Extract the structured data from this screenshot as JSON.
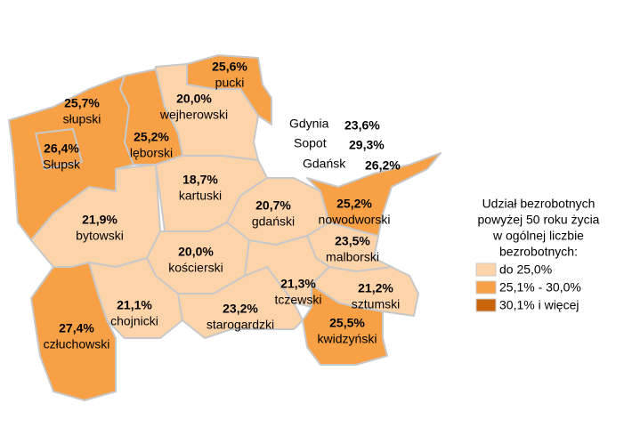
{
  "regions": [
    {
      "name": "pucki",
      "value": 25.6,
      "value_label": "25,6%"
    },
    {
      "name": "wejherowski",
      "value": 20.0,
      "value_label": "20,0%"
    },
    {
      "name": "lęborski",
      "value": 25.2,
      "value_label": "25,2%"
    },
    {
      "name": "słupski",
      "value": 25.7,
      "value_label": "25,7%"
    },
    {
      "name": "Słupsk",
      "value": 26.4,
      "value_label": "26,4%"
    },
    {
      "name": "bytowski",
      "value": 21.9,
      "value_label": "21,9%"
    },
    {
      "name": "kartuski",
      "value": 18.7,
      "value_label": "18,7%"
    },
    {
      "name": "gdański",
      "value": 20.7,
      "value_label": "20,7%"
    },
    {
      "name": "nowodworski",
      "value": 25.2,
      "value_label": "25,2%"
    },
    {
      "name": "malborski",
      "value": 23.5,
      "value_label": "23,5%"
    },
    {
      "name": "kościerski",
      "value": 20.0,
      "value_label": "20,0%"
    },
    {
      "name": "chojnicki",
      "value": 21.1,
      "value_label": "21,1%"
    },
    {
      "name": "człuchowski",
      "value": 27.4,
      "value_label": "27,4%"
    },
    {
      "name": "starogardzki",
      "value": 23.2,
      "value_label": "23,2%"
    },
    {
      "name": "tczewski",
      "value": 21.3,
      "value_label": "21,3%"
    },
    {
      "name": "sztumski",
      "value": 21.2,
      "value_label": "21,2%"
    },
    {
      "name": "kwidzyński",
      "value": 25.5,
      "value_label": "25,5%"
    }
  ],
  "cities": [
    {
      "name": "Gdynia",
      "value": 23.6,
      "value_label": "23,6%"
    },
    {
      "name": "Sopot",
      "value": 29.3,
      "value_label": "29,3%"
    },
    {
      "name": "Gdańsk",
      "value": 26.2,
      "value_label": "26,2%"
    }
  ],
  "legend": {
    "title_lines": [
      "Udział bezrobotnych",
      "powyżej 50 roku życia",
      "w ogólnej liczbie",
      "bezrobotnych:"
    ],
    "items": [
      {
        "label": "do 25,0%",
        "color": "#fdd3aa"
      },
      {
        "label": "25,1% - 30,0%",
        "color": "#f7a045",
        "min": 25.1
      },
      {
        "label": "30,1% i więcej",
        "color": "#c8640a",
        "min": 30.1
      }
    ]
  }
}
